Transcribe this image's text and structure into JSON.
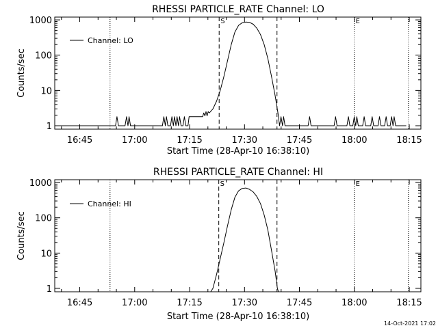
{
  "footer_timestamp": "14-Oct-2021 17:02",
  "colors": {
    "background": "#ffffff",
    "ink": "#000000"
  },
  "chart_data": [
    {
      "type": "line",
      "title": "RHESSI PARTICLE_RATE Channel: LO",
      "xlabel": "Start Time (28-Apr-10 16:38:10)",
      "ylabel": "Counts/sec",
      "legend": "Channel: LO",
      "legend_position": "top-left",
      "x_unit": "minutes since 16:38:10",
      "xlim": [
        0,
        100
      ],
      "ylim_log": [
        0.8,
        1200
      ],
      "x_ticks": [
        {
          "x": 6.83,
          "label": "16:45"
        },
        {
          "x": 21.83,
          "label": "17:00"
        },
        {
          "x": 36.83,
          "label": "17:15"
        },
        {
          "x": 51.83,
          "label": "17:30"
        },
        {
          "x": 66.83,
          "label": "17:45"
        },
        {
          "x": 81.83,
          "label": "18:00"
        },
        {
          "x": 96.83,
          "label": "18:15"
        }
      ],
      "y_ticks": [
        {
          "y": 1,
          "label": "1"
        },
        {
          "y": 10,
          "label": "10"
        },
        {
          "y": 100,
          "label": "100"
        },
        {
          "y": 1000,
          "label": "1000"
        }
      ],
      "dashed_markers": [
        {
          "x": 44.9,
          "label": "S"
        },
        {
          "x": 60.7,
          "label": ""
        }
      ],
      "dotted_markers": [
        {
          "x": 15.1,
          "label": ""
        },
        {
          "x": 81.8,
          "label": "E"
        },
        {
          "x": 96.6,
          "label": ""
        }
      ],
      "series": [
        {
          "name": "Channel: LO",
          "points": [
            [
              0,
              1
            ],
            [
              1,
              1
            ],
            [
              2,
              1
            ],
            [
              3,
              1
            ],
            [
              4,
              1
            ],
            [
              5,
              1
            ],
            [
              6,
              1
            ],
            [
              7,
              1
            ],
            [
              8,
              1
            ],
            [
              9,
              1
            ],
            [
              10,
              1
            ],
            [
              11,
              1
            ],
            [
              12,
              1
            ],
            [
              13,
              1
            ],
            [
              14,
              1
            ],
            [
              15,
              1
            ],
            [
              16,
              1
            ],
            [
              16.6,
              1
            ],
            [
              17,
              1.8
            ],
            [
              17.4,
              1
            ],
            [
              19.2,
              1
            ],
            [
              19.6,
              1.8
            ],
            [
              20,
              1
            ],
            [
              20.3,
              1.8
            ],
            [
              20.7,
              1
            ],
            [
              21,
              1
            ],
            [
              22,
              1
            ],
            [
              23,
              1
            ],
            [
              24,
              1
            ],
            [
              25,
              1
            ],
            [
              26,
              1
            ],
            [
              27,
              1
            ],
            [
              28,
              1
            ],
            [
              29,
              1
            ],
            [
              29.4,
              1
            ],
            [
              29.8,
              1.8
            ],
            [
              30.2,
              1
            ],
            [
              30.5,
              1.8
            ],
            [
              30.9,
              1
            ],
            [
              31.6,
              1
            ],
            [
              32,
              1.8
            ],
            [
              32.4,
              1
            ],
            [
              32.7,
              1.8
            ],
            [
              33.1,
              1
            ],
            [
              33.4,
              1.8
            ],
            [
              33.8,
              1
            ],
            [
              34.1,
              1.8
            ],
            [
              34.5,
              1
            ],
            [
              35,
              1
            ],
            [
              35.4,
              1.8
            ],
            [
              35.8,
              1
            ],
            [
              36.4,
              1
            ],
            [
              36.7,
              1.8
            ],
            [
              40.4,
              1.8
            ],
            [
              40.7,
              2.3
            ],
            [
              41,
              1.9
            ],
            [
              41.3,
              2.5
            ],
            [
              41.6,
              1.9
            ],
            [
              41.9,
              2.5
            ],
            [
              42.2,
              2.3
            ],
            [
              43.2,
              3
            ],
            [
              44.2,
              5
            ],
            [
              45.2,
              10
            ],
            [
              46.2,
              25
            ],
            [
              47.2,
              70
            ],
            [
              48.2,
              200
            ],
            [
              49.2,
              450
            ],
            [
              50.2,
              700
            ],
            [
              51.2,
              830
            ],
            [
              52.2,
              870
            ],
            [
              53.2,
              850
            ],
            [
              54.2,
              750
            ],
            [
              55.2,
              580
            ],
            [
              56.2,
              380
            ],
            [
              57.2,
              200
            ],
            [
              58.2,
              80
            ],
            [
              59.2,
              25
            ],
            [
              60.2,
              7
            ],
            [
              61,
              2.2
            ],
            [
              61.4,
              1
            ],
            [
              61.8,
              1.8
            ],
            [
              62.2,
              1
            ],
            [
              62.5,
              1.8
            ],
            [
              62.9,
              1
            ],
            [
              63,
              1
            ],
            [
              64,
              1
            ],
            [
              65,
              1
            ],
            [
              66,
              1
            ],
            [
              67,
              1
            ],
            [
              68,
              1
            ],
            [
              69.2,
              1
            ],
            [
              69.6,
              1.8
            ],
            [
              70,
              1
            ],
            [
              71,
              1
            ],
            [
              72,
              1
            ],
            [
              73,
              1
            ],
            [
              74,
              1
            ],
            [
              75,
              1
            ],
            [
              76,
              1
            ],
            [
              76.3,
              1
            ],
            [
              76.7,
              1.8
            ],
            [
              77.1,
              1
            ],
            [
              78,
              1
            ],
            [
              79,
              1
            ],
            [
              79.8,
              1
            ],
            [
              80.2,
              1.8
            ],
            [
              80.6,
              1
            ],
            [
              81.4,
              1
            ],
            [
              81.8,
              1.8
            ],
            [
              82.2,
              1
            ],
            [
              82.5,
              1.8
            ],
            [
              82.9,
              1
            ],
            [
              84.1,
              1
            ],
            [
              84.5,
              1.8
            ],
            [
              84.9,
              1
            ],
            [
              86.3,
              1
            ],
            [
              86.7,
              1.8
            ],
            [
              87.1,
              1
            ],
            [
              88.3,
              1
            ],
            [
              88.7,
              1.8
            ],
            [
              89.1,
              1
            ],
            [
              90.1,
              1
            ],
            [
              90.5,
              1.8
            ],
            [
              90.9,
              1
            ],
            [
              91.6,
              1
            ],
            [
              92,
              1.8
            ],
            [
              92.4,
              1
            ],
            [
              92.7,
              1.8
            ],
            [
              93.1,
              1
            ],
            [
              94,
              1
            ],
            [
              95,
              1
            ],
            [
              96,
              1
            ]
          ]
        }
      ]
    },
    {
      "type": "line",
      "title": "RHESSI PARTICLE_RATE Channel: HI",
      "xlabel": "Start Time (28-Apr-10 16:38:10)",
      "ylabel": "Counts/sec",
      "legend": "Channel: HI",
      "legend_position": "top-left",
      "x_unit": "minutes since 16:38:10",
      "xlim": [
        0,
        100
      ],
      "ylim_log": [
        0.8,
        1200
      ],
      "x_ticks": [
        {
          "x": 6.83,
          "label": "16:45"
        },
        {
          "x": 21.83,
          "label": "17:00"
        },
        {
          "x": 36.83,
          "label": "17:15"
        },
        {
          "x": 51.83,
          "label": "17:30"
        },
        {
          "x": 66.83,
          "label": "17:45"
        },
        {
          "x": 81.83,
          "label": "18:00"
        },
        {
          "x": 96.83,
          "label": "18:15"
        }
      ],
      "y_ticks": [
        {
          "y": 1,
          "label": "1"
        },
        {
          "y": 10,
          "label": "10"
        },
        {
          "y": 100,
          "label": "100"
        },
        {
          "y": 1000,
          "label": "1000"
        }
      ],
      "dashed_markers": [
        {
          "x": 44.8,
          "label": "S"
        },
        {
          "x": 60.7,
          "label": ""
        }
      ],
      "dotted_markers": [
        {
          "x": 15.1,
          "label": ""
        },
        {
          "x": 81.8,
          "label": "E"
        },
        {
          "x": 96.6,
          "label": ""
        }
      ],
      "series": [
        {
          "name": "Channel: HI",
          "points": [
            [
              42.6,
              0.8
            ],
            [
              43.2,
              1
            ],
            [
              44.2,
              2.5
            ],
            [
              45.2,
              7
            ],
            [
              46.2,
              20
            ],
            [
              47.2,
              60
            ],
            [
              48.2,
              170
            ],
            [
              49.2,
              380
            ],
            [
              50.2,
              580
            ],
            [
              51.2,
              680
            ],
            [
              52.2,
              700
            ],
            [
              53.2,
              640
            ],
            [
              54.2,
              540
            ],
            [
              55.2,
              400
            ],
            [
              56.2,
              250
            ],
            [
              57.2,
              120
            ],
            [
              58.2,
              45
            ],
            [
              59.2,
              12
            ],
            [
              60.2,
              3
            ],
            [
              60.8,
              1
            ],
            [
              61.1,
              0.8
            ]
          ]
        }
      ]
    }
  ]
}
